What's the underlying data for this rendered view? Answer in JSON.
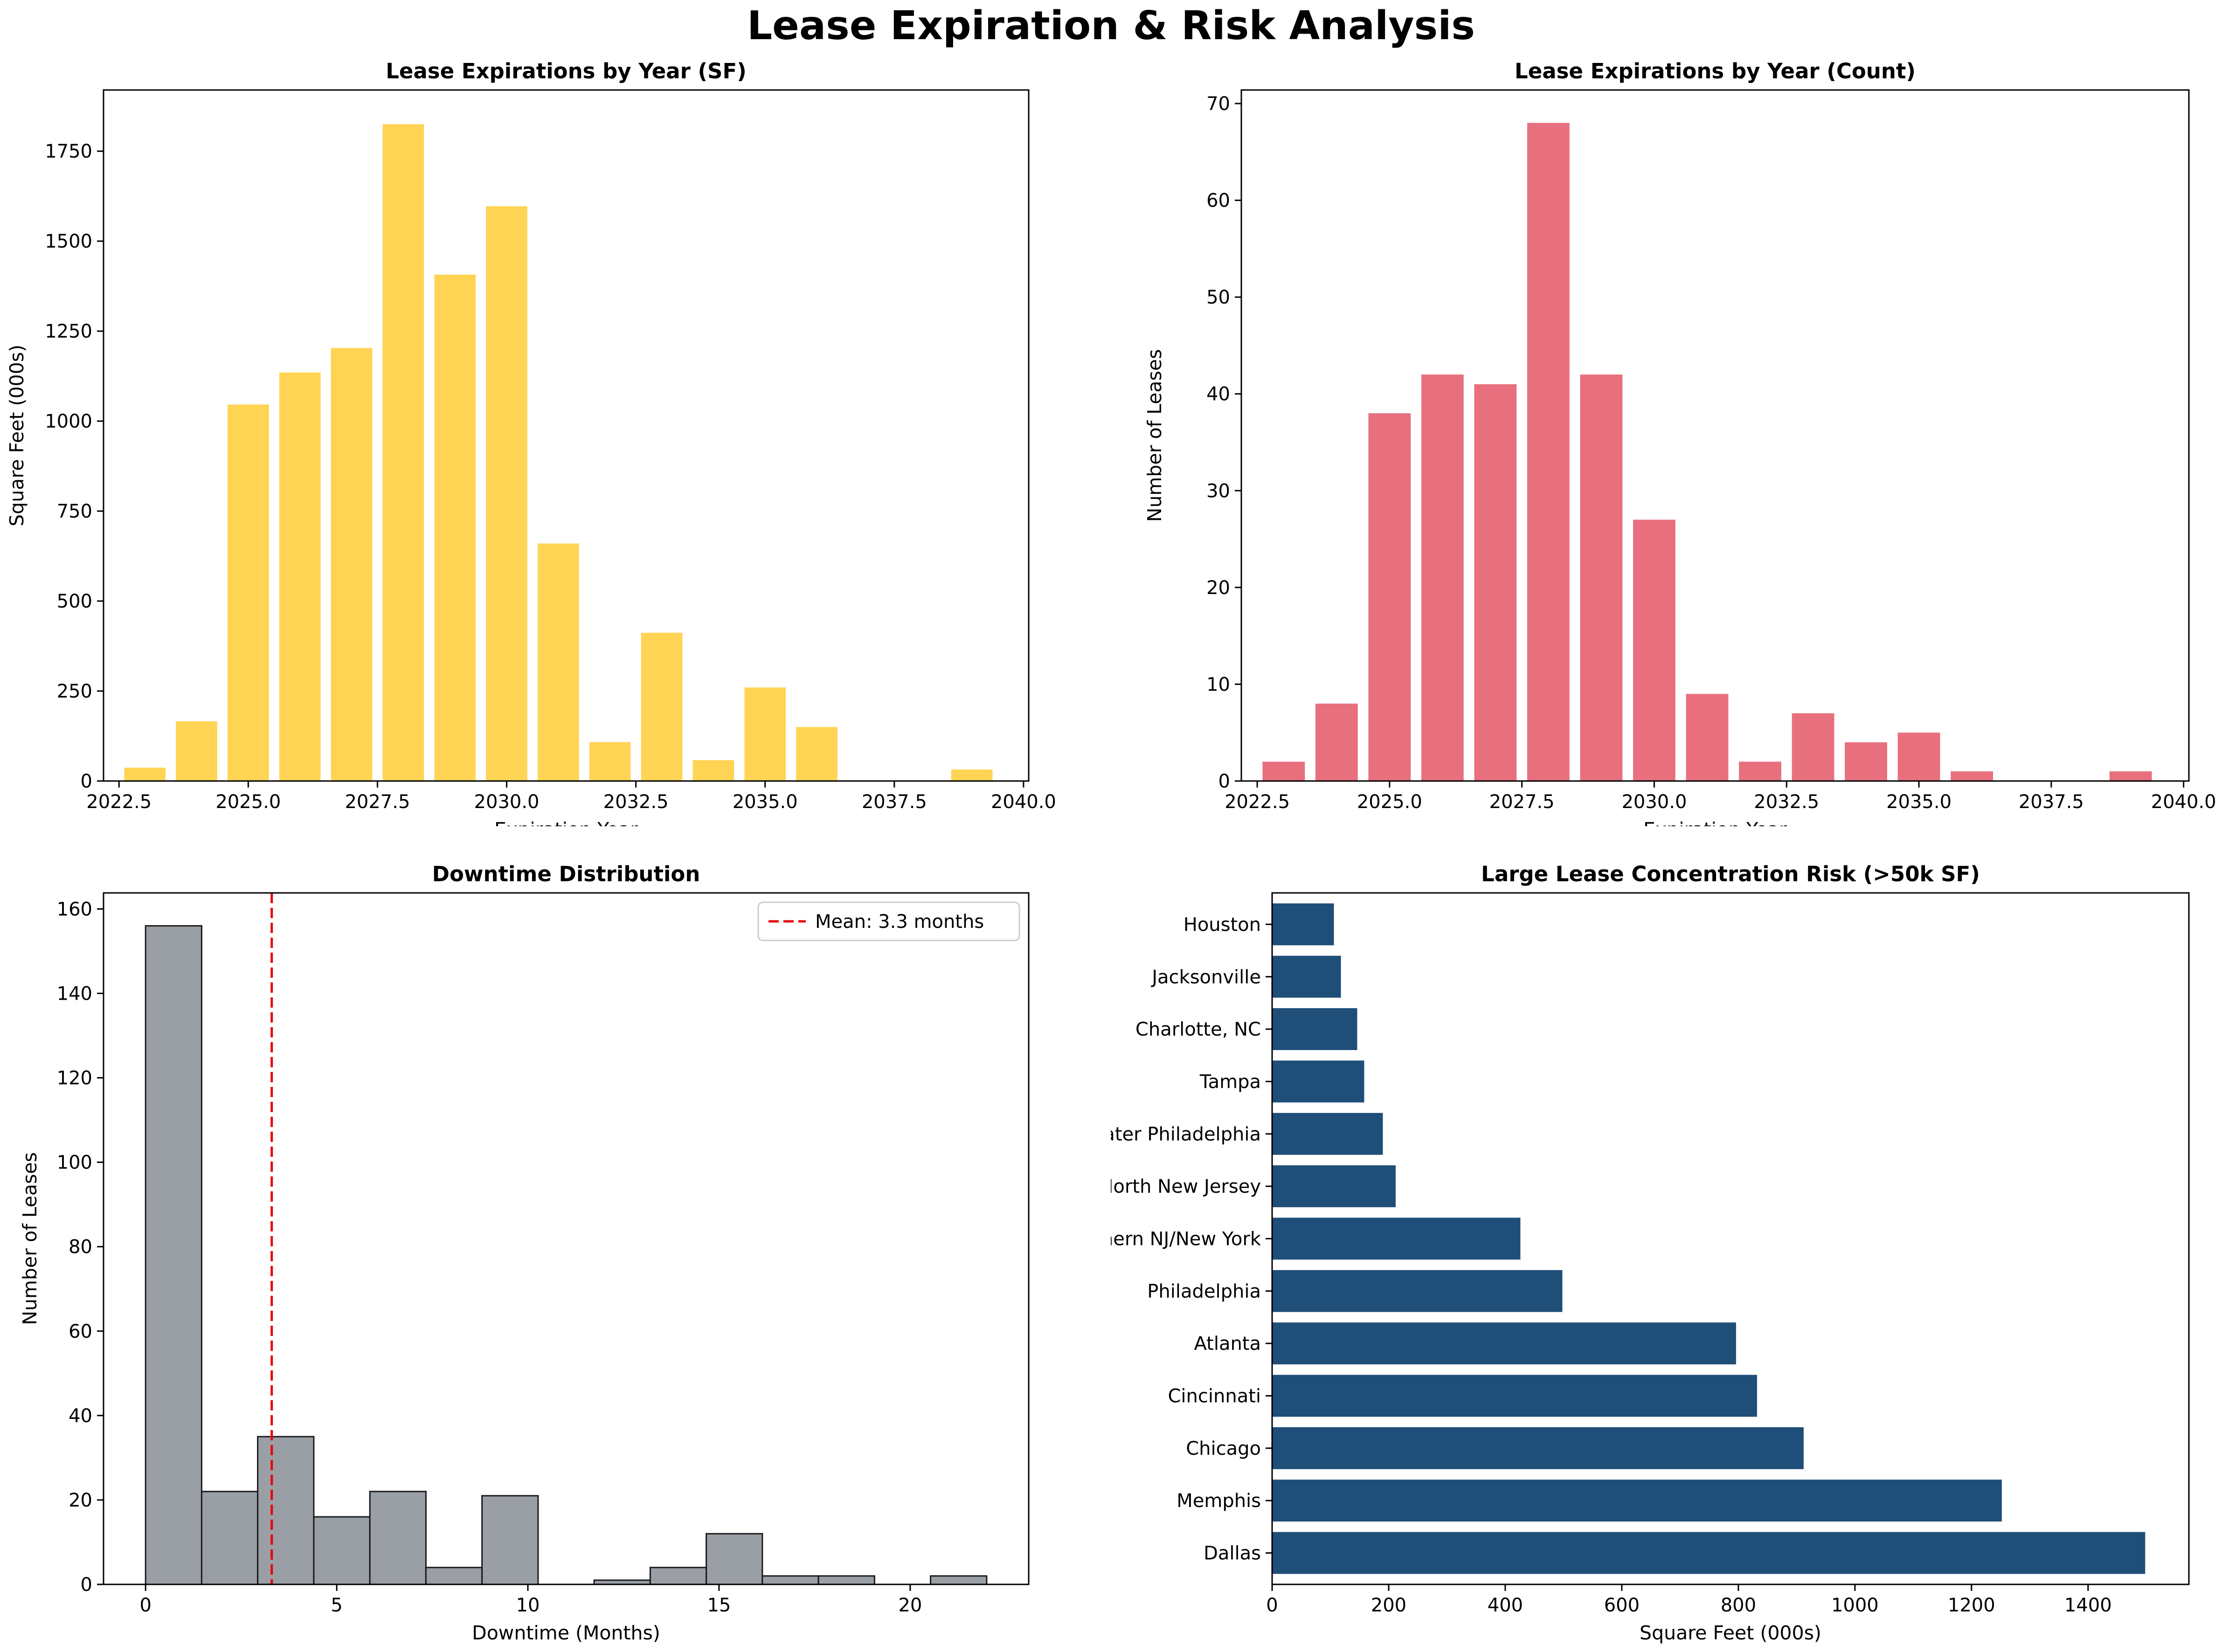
{
  "figure": {
    "suptitle": "Lease Expiration & Risk Analysis"
  },
  "colors": {
    "sf": "#FFD454",
    "count": "#E8707E",
    "downtime": "#9A9FA6",
    "market": "#1F4E79",
    "mean_line": "#E8000B"
  },
  "chart_data": [
    {
      "type": "bar",
      "title": "Lease Expirations by Year (SF)",
      "xlabel": "Expiration Year",
      "ylabel": "Square Feet (000s)",
      "x": [
        2023,
        2024,
        2025,
        2026,
        2027,
        2028,
        2029,
        2030,
        2031,
        2032,
        2033,
        2034,
        2035,
        2036,
        2039
      ],
      "values": [
        37,
        166,
        1046,
        1135,
        1203,
        1825,
        1407,
        1597,
        660,
        108,
        412,
        58,
        260,
        150,
        32
      ],
      "xlim": [
        2022.2,
        2040.1
      ],
      "ylim": [
        0,
        1920
      ],
      "xticks": [
        2022.5,
        2025.0,
        2027.5,
        2030.0,
        2032.5,
        2035.0,
        2037.5,
        2040.0
      ],
      "xtick_labels": [
        "2022.5",
        "2025.0",
        "2027.5",
        "2030.0",
        "2032.5",
        "2035.0",
        "2037.5",
        "2040.0"
      ],
      "yticks": [
        0,
        250,
        500,
        750,
        1000,
        1250,
        1500,
        1750
      ],
      "ytick_labels": [
        "0",
        "250",
        "500",
        "750",
        "1000",
        "1250",
        "1500",
        "1750"
      ],
      "grid": false
    },
    {
      "type": "bar",
      "title": "Lease Expirations by Year (Count)",
      "xlabel": "Expiration Year",
      "ylabel": "Number of Leases",
      "x": [
        2023,
        2024,
        2025,
        2026,
        2027,
        2028,
        2029,
        2030,
        2031,
        2032,
        2033,
        2034,
        2035,
        2036,
        2039
      ],
      "values": [
        2,
        8,
        38,
        42,
        41,
        68,
        42,
        27,
        9,
        2,
        7,
        4,
        5,
        1,
        1
      ],
      "xlim": [
        2022.2,
        2040.1
      ],
      "ylim": [
        0,
        71.4
      ],
      "xticks": [
        2022.5,
        2025.0,
        2027.5,
        2030.0,
        2032.5,
        2035.0,
        2037.5,
        2040.0
      ],
      "xtick_labels": [
        "2022.5",
        "2025.0",
        "2027.5",
        "2030.0",
        "2032.5",
        "2035.0",
        "2037.5",
        "2040.0"
      ],
      "yticks": [
        0,
        10,
        20,
        30,
        40,
        50,
        60,
        70
      ],
      "ytick_labels": [
        "0",
        "10",
        "20",
        "30",
        "40",
        "50",
        "60",
        "70"
      ],
      "grid": false
    },
    {
      "type": "histogram",
      "title": "Downtime Distribution",
      "xlabel": "Downtime (Months)",
      "ylabel": "Number of Leases",
      "bin_edges": [
        0,
        1.467,
        2.933,
        4.4,
        5.867,
        7.333,
        8.8,
        10.267,
        11.733,
        13.2,
        14.667,
        16.133,
        17.6,
        19.067,
        20.533,
        22.0
      ],
      "counts": [
        156,
        22,
        35,
        16,
        22,
        4,
        21,
        0,
        1,
        4,
        12,
        2,
        2,
        0,
        2
      ],
      "mean": 3.3,
      "legend": {
        "label": "Mean: 3.3 months",
        "position": "top-right"
      },
      "xlim": [
        -1.1,
        23.1
      ],
      "ylim": [
        0,
        163.8
      ],
      "xticks": [
        0,
        5,
        10,
        15,
        20
      ],
      "xtick_labels": [
        "0",
        "5",
        "10",
        "15",
        "20"
      ],
      "yticks": [
        0,
        20,
        40,
        60,
        80,
        100,
        120,
        140,
        160
      ],
      "ytick_labels": [
        "0",
        "20",
        "40",
        "60",
        "80",
        "100",
        "120",
        "140",
        "160"
      ],
      "grid": false
    },
    {
      "type": "barh",
      "title": "Large Lease Concentration Risk (>50k SF)",
      "xlabel": "Square Feet (000s)",
      "ylabel": "",
      "categories": [
        "Dallas",
        "Memphis",
        "Chicago",
        "Cincinnati",
        "Atlanta",
        "Philadelphia",
        "Northern NJ/New York",
        "North New Jersey",
        "Greater Philadelphia",
        "Tampa",
        "Charlotte, NC",
        "Jacksonville",
        "Houston"
      ],
      "values": [
        1498,
        1252,
        912,
        832,
        796,
        498,
        426,
        212,
        190,
        158,
        146,
        118,
        106
      ],
      "xlim": [
        0,
        1573
      ],
      "xticks": [
        0,
        200,
        400,
        600,
        800,
        1000,
        1200,
        1400
      ],
      "xtick_labels": [
        "0",
        "200",
        "400",
        "600",
        "800",
        "1000",
        "1200",
        "1400"
      ],
      "grid": false
    }
  ]
}
